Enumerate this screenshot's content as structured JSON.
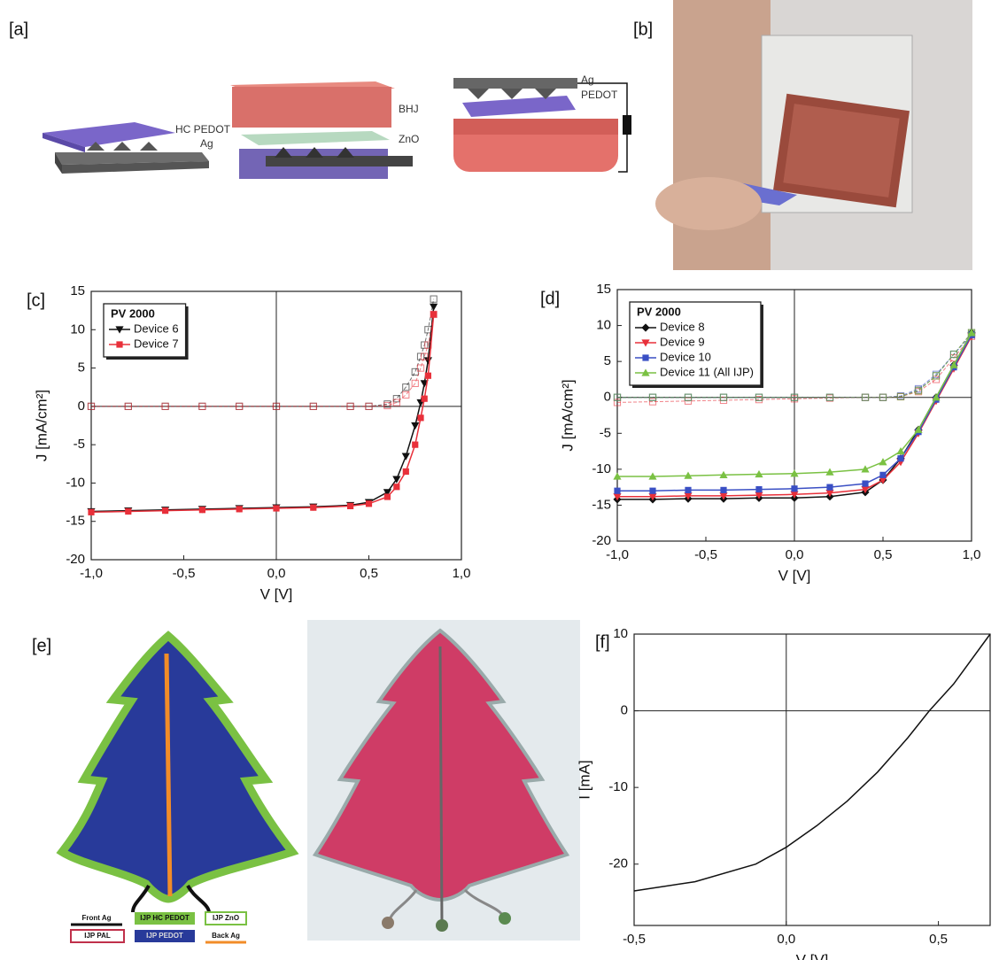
{
  "panels": {
    "a": {
      "label": "[a]",
      "layer_labels": [
        "HC PEDOT",
        "Ag",
        "BHJ",
        "ZnO",
        "Ag",
        "PEDOT"
      ]
    },
    "b": {
      "label": "[b]"
    },
    "e": {
      "label": "[e]",
      "legend": [
        "Front Ag",
        "IJP HC PEDOT",
        "IJP ZnO",
        "IJP PAL",
        "IJP PEDOT",
        "Back Ag"
      ]
    }
  },
  "chart_data": [
    {
      "type": "line",
      "panel_label": "[c]",
      "xlabel": "V [V]",
      "ylabel": "J [mA/cm²]",
      "xlim": [
        -1,
        1
      ],
      "ylim": [
        -20,
        15
      ],
      "xticks": [
        {
          "value": -1,
          "label": "-1,0"
        },
        {
          "value": -0.5,
          "label": "-0,5"
        },
        {
          "value": 0,
          "label": "0,0"
        },
        {
          "value": 0.5,
          "label": "0,5"
        },
        {
          "value": 1,
          "label": "1,0"
        }
      ],
      "yticks": [
        -20,
        -15,
        -10,
        -5,
        0,
        5,
        10,
        15
      ],
      "zero_lines": true,
      "legend": "upper left",
      "legend_title": "PV 2000",
      "x": [
        -1,
        -0.8,
        -0.6,
        -0.4,
        -0.2,
        0,
        0.2,
        0.4,
        0.5,
        0.6,
        0.65,
        0.7,
        0.75,
        0.78,
        0.8,
        0.82,
        0.85
      ],
      "series": [
        {
          "name": "Device 6",
          "color": "#111111",
          "marker": "triangle-down",
          "values": [
            -13.7,
            -13.6,
            -13.5,
            -13.4,
            -13.3,
            -13.2,
            -13.1,
            -12.9,
            -12.5,
            -11.2,
            -9.5,
            -6.5,
            -2.5,
            0.5,
            3,
            6,
            13
          ],
          "dark_values": [
            0,
            0,
            0,
            0,
            0,
            0,
            0,
            0,
            0,
            0.3,
            1,
            2.5,
            4.5,
            6.5,
            8,
            10,
            14
          ]
        },
        {
          "name": "Device 7",
          "color": "#e8303a",
          "marker": "square",
          "values": [
            -13.8,
            -13.7,
            -13.6,
            -13.5,
            -13.4,
            -13.3,
            -13.2,
            -13,
            -12.7,
            -11.8,
            -10.5,
            -8.5,
            -5,
            -1.5,
            1,
            4,
            12
          ],
          "dark_values": [
            0,
            0,
            0,
            0,
            0,
            0,
            0,
            0,
            0,
            0.1,
            0.5,
            1.5,
            3,
            5,
            6.5,
            8,
            12
          ]
        }
      ]
    },
    {
      "type": "line",
      "panel_label": "[d]",
      "xlabel": "V [V]",
      "ylabel": "J [mA/cm²]",
      "xlim": [
        -1,
        1
      ],
      "ylim": [
        -20,
        15
      ],
      "xticks": [
        {
          "value": -1,
          "label": "-1,0"
        },
        {
          "value": -0.5,
          "label": "-0,5"
        },
        {
          "value": 0,
          "label": "0,0"
        },
        {
          "value": 0.5,
          "label": "0,5"
        },
        {
          "value": 1,
          "label": "1,0"
        }
      ],
      "yticks": [
        -20,
        -15,
        -10,
        -5,
        0,
        5,
        10,
        15
      ],
      "zero_lines": true,
      "legend": "upper left",
      "legend_title": "PV 2000",
      "x": [
        -1,
        -0.8,
        -0.6,
        -0.4,
        -0.2,
        0,
        0.2,
        0.4,
        0.5,
        0.6,
        0.7,
        0.8,
        0.9,
        1
      ],
      "series": [
        {
          "name": "Device 8",
          "color": "#111111",
          "marker": "diamond",
          "values": [
            -14.2,
            -14.2,
            -14.1,
            -14.1,
            -14,
            -14,
            -13.8,
            -13.2,
            -11.5,
            -8.5,
            -4.5,
            0,
            4.5,
            9
          ],
          "dark_values": [
            0,
            0,
            0,
            0,
            0,
            0,
            0,
            0,
            0,
            0.1,
            1,
            3,
            6,
            9
          ]
        },
        {
          "name": "Device 9",
          "color": "#e8303a",
          "marker": "triangle-down",
          "values": [
            -13.8,
            -13.8,
            -13.7,
            -13.7,
            -13.6,
            -13.5,
            -13.3,
            -12.8,
            -11.5,
            -9,
            -5,
            -0.5,
            4,
            8.5
          ],
          "dark_values": [
            -0.7,
            -0.6,
            -0.5,
            -0.4,
            -0.3,
            -0.2,
            -0.1,
            0,
            0,
            0.1,
            0.8,
            2.5,
            5.5,
            8.5
          ]
        },
        {
          "name": "Device 10",
          "color": "#3a4fc4",
          "marker": "square",
          "values": [
            -13,
            -13,
            -12.9,
            -12.9,
            -12.8,
            -12.7,
            -12.5,
            -12,
            -10.8,
            -8.5,
            -4.8,
            -0.3,
            4.2,
            8.7
          ],
          "dark_values": [
            0,
            0,
            0,
            0,
            0,
            0,
            0,
            0,
            0,
            0.2,
            1.2,
            3.2,
            6,
            8.7
          ]
        },
        {
          "name": "Device 11 (All IJP)",
          "color": "#7ac143",
          "marker": "triangle-up",
          "values": [
            -11,
            -11,
            -10.9,
            -10.8,
            -10.7,
            -10.6,
            -10.4,
            -10,
            -9,
            -7.5,
            -4.5,
            0,
            4.5,
            9
          ],
          "dark_values": [
            0,
            0,
            0,
            0,
            0,
            0,
            0,
            0,
            0,
            0.1,
            0.9,
            3,
            6,
            9
          ]
        }
      ]
    },
    {
      "type": "line",
      "panel_label": "[f]",
      "xlabel": "V [V]",
      "ylabel": "I [mA]",
      "xlim": [
        -0.5,
        0.67
      ],
      "ylim": [
        -28,
        10
      ],
      "xticks": [
        {
          "value": -0.5,
          "label": "-0,5"
        },
        {
          "value": 0,
          "label": "0,0"
        },
        {
          "value": 0.5,
          "label": "0,5"
        }
      ],
      "yticks": [
        -20,
        -10,
        0,
        10
      ],
      "zero_lines": true,
      "x": [
        -0.5,
        -0.3,
        -0.1,
        0,
        0.1,
        0.2,
        0.3,
        0.4,
        0.47,
        0.55,
        0.67
      ],
      "series": [
        {
          "color": "#111111",
          "values": [
            -23.5,
            -22.3,
            -20,
            -17.8,
            -15,
            -11.8,
            -8,
            -3.5,
            0,
            3.5,
            10
          ]
        }
      ]
    }
  ]
}
